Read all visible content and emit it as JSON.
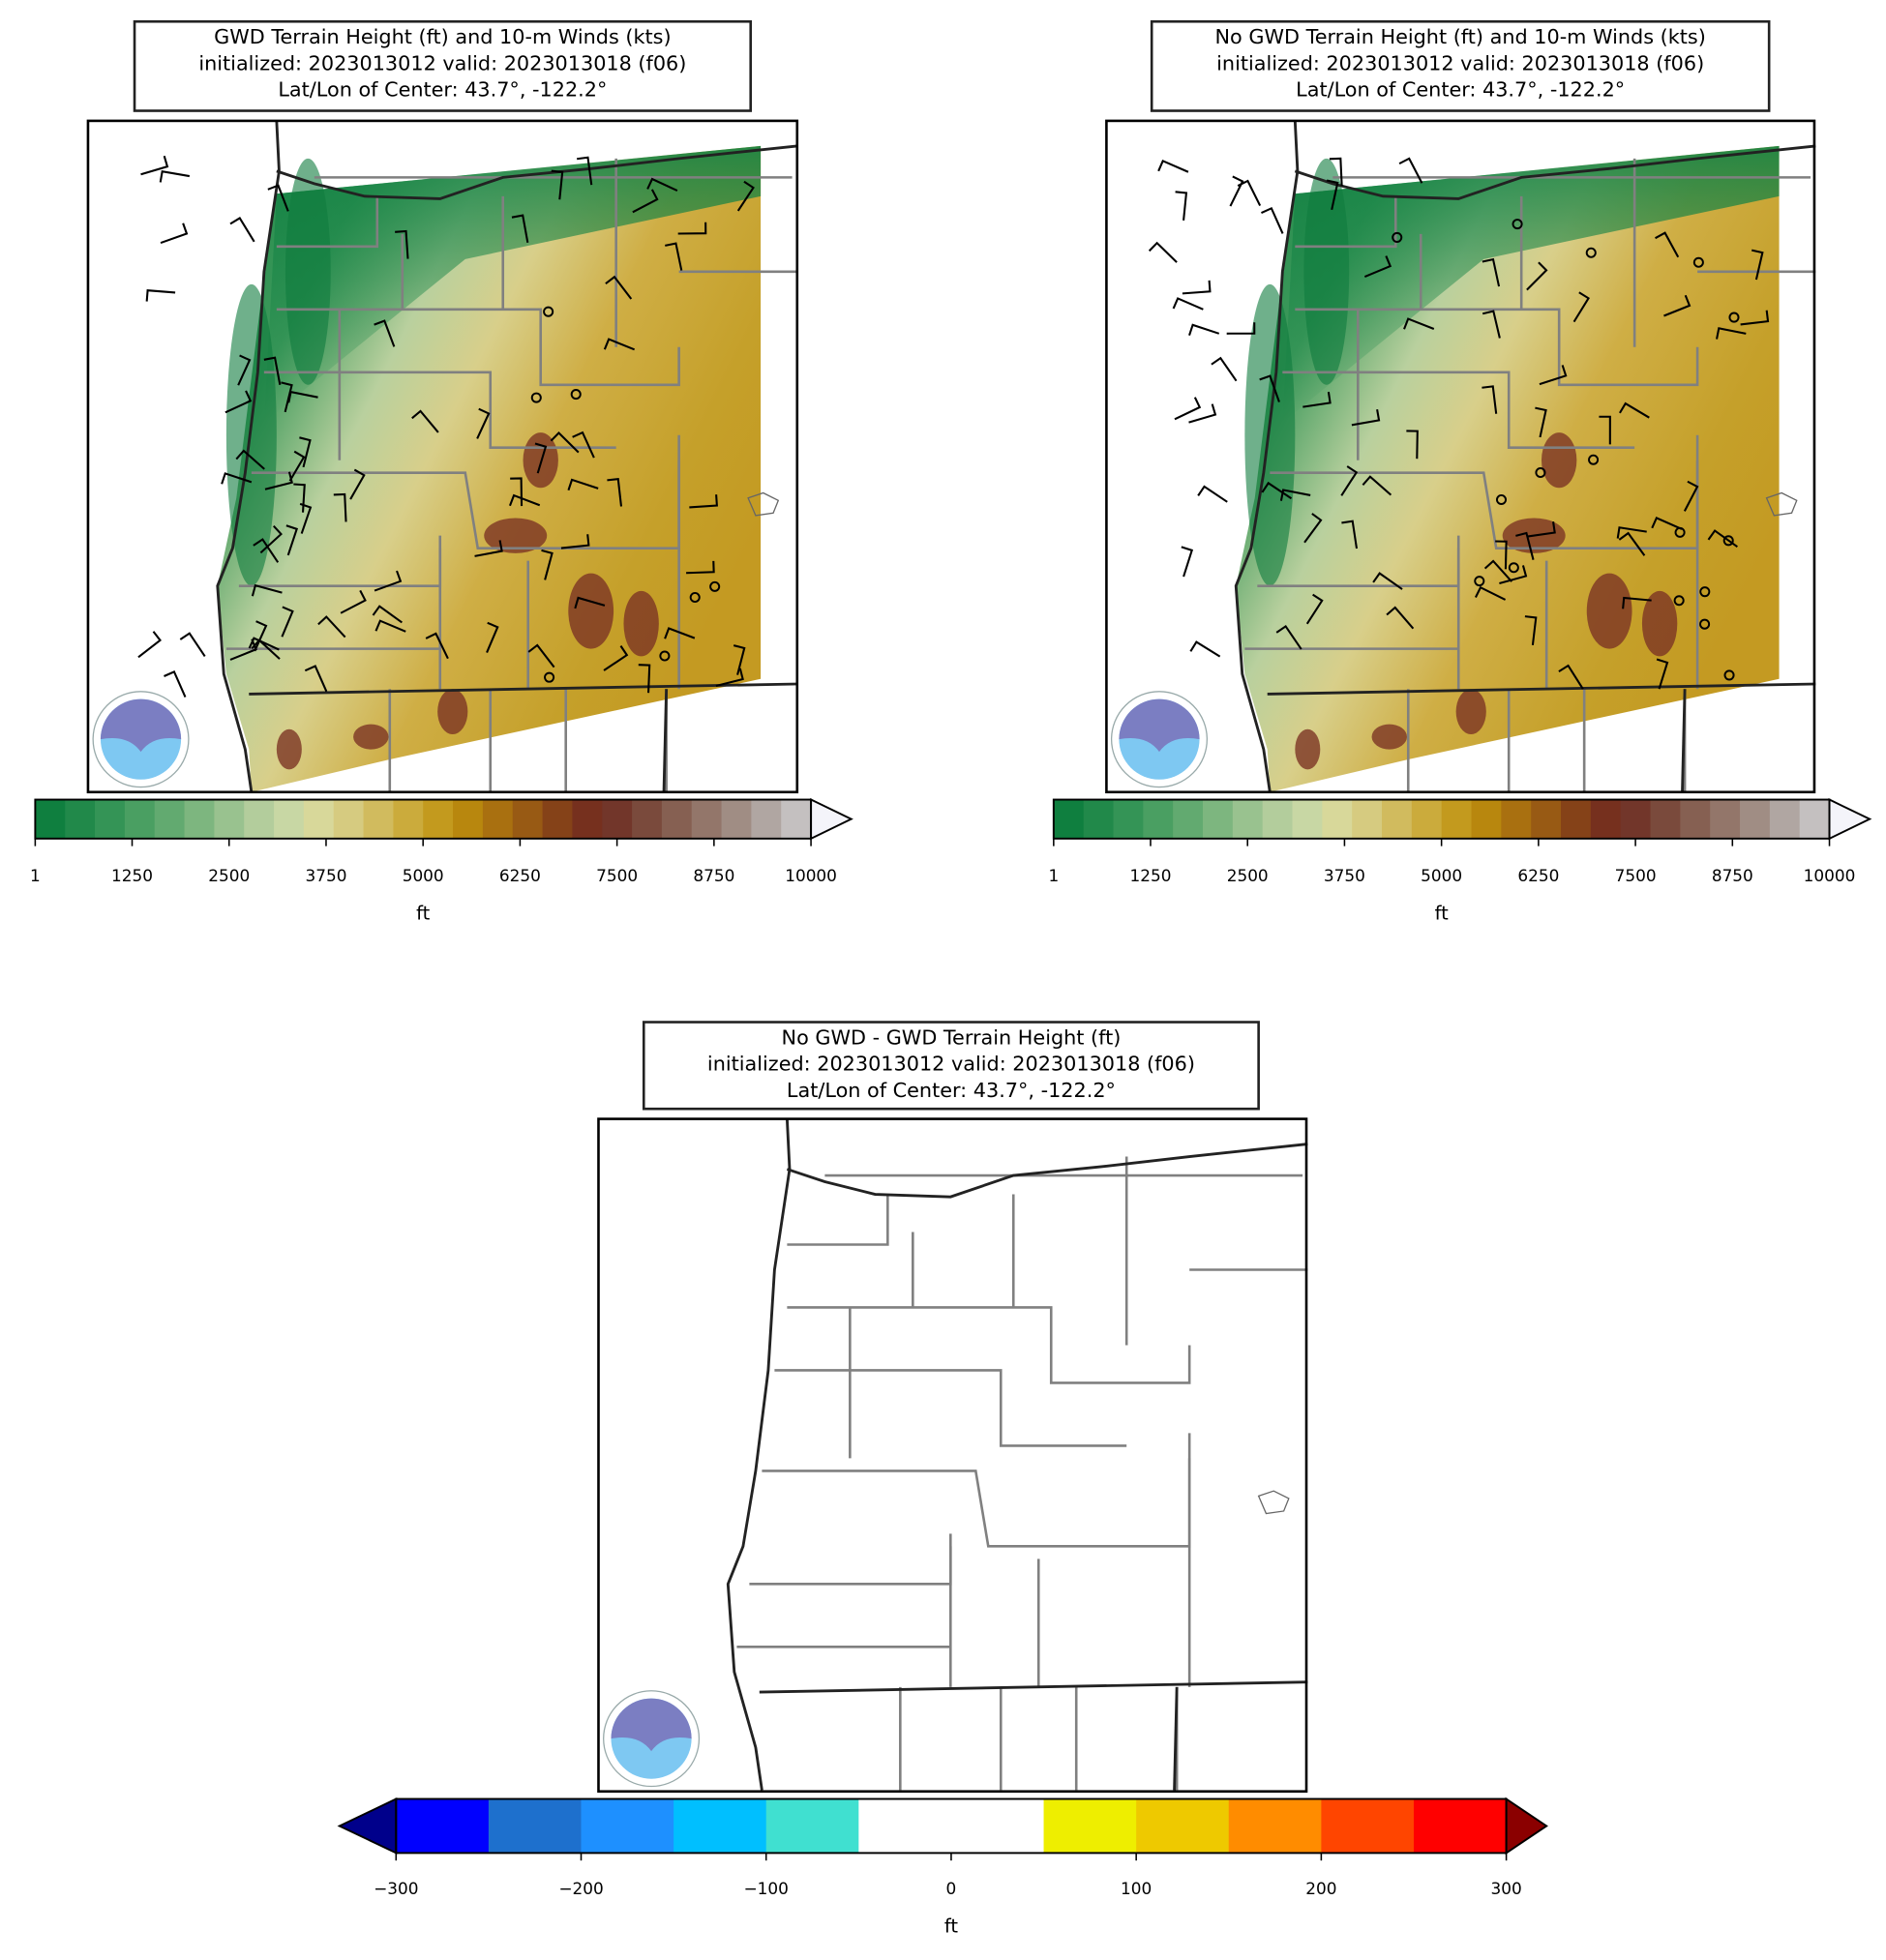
{
  "panels": [
    {
      "title": [
        "GWD Terrain Height (ft) and 10-m Winds (kts)",
        "initialized: 2023013012 valid: 2023013018 (f06)",
        "Lat/Lon of Center: 43.7°, -122.2°"
      ],
      "field": "terrain",
      "winds": true,
      "colorbar": {
        "lim": [
          1,
          10000
        ],
        "ticks": [
          1,
          1250,
          2500,
          3750,
          5000,
          6250,
          7500,
          8750,
          10000
        ],
        "label": "ft",
        "colors": [
          "#0f7f3f",
          "#21894a",
          "#349456",
          "#4a9f62",
          "#62aa70",
          "#7db67f",
          "#99c28f",
          "#b3cd9c",
          "#c8d7a4",
          "#d8d89a",
          "#d6cb80",
          "#d1bb5e",
          "#cbab3c",
          "#c39a1e",
          "#b8870e",
          "#a97010",
          "#985a14",
          "#854218",
          "#76301e",
          "#72362a",
          "#7a4a3c",
          "#866052",
          "#93766a",
          "#a08d84",
          "#b0a6a2",
          "#c4c0c0"
        ],
        "extend_max": "#f4f4fa"
      }
    },
    {
      "title": [
        "No GWD Terrain Height (ft) and 10-m Winds (kts)",
        "initialized: 2023013012 valid: 2023013018 (f06)",
        "Lat/Lon of Center: 43.7°, -122.2°"
      ],
      "field": "terrain",
      "winds": true,
      "colorbar": {
        "lim": [
          1,
          10000
        ],
        "ticks": [
          1,
          1250,
          2500,
          3750,
          5000,
          6250,
          7500,
          8750,
          10000
        ],
        "label": "ft",
        "colors": [
          "#0f7f3f",
          "#21894a",
          "#349456",
          "#4a9f62",
          "#62aa70",
          "#7db67f",
          "#99c28f",
          "#b3cd9c",
          "#c8d7a4",
          "#d8d89a",
          "#d6cb80",
          "#d1bb5e",
          "#cbab3c",
          "#c39a1e",
          "#b8870e",
          "#a97010",
          "#985a14",
          "#854218",
          "#76301e",
          "#72362a",
          "#7a4a3c",
          "#866052",
          "#93766a",
          "#a08d84",
          "#b0a6a2",
          "#c4c0c0"
        ],
        "extend_max": "#f4f4fa"
      }
    },
    {
      "title": [
        "No GWD - GWD Terrain Height (ft)",
        "initialized: 2023013012 valid: 2023013018 (f06)",
        "Lat/Lon of Center: 43.7°, -122.2°"
      ],
      "field": "difference",
      "winds": false,
      "colorbar": {
        "lim": [
          -300,
          300
        ],
        "ticks": [
          {
            "value": -300,
            "label": "−300"
          },
          {
            "value": -200,
            "label": "−200"
          },
          {
            "value": -100,
            "label": "−100"
          },
          0,
          100,
          200,
          300
        ],
        "label": "ft",
        "bounds": [
          -300,
          -250,
          -200,
          -150,
          -100,
          -50,
          50,
          100,
          150,
          200,
          250,
          300
        ],
        "colors": [
          "#0000ff",
          "#1e70cd",
          "#1e90ff",
          "#00bfff",
          "#40e0d0",
          "#ffffff",
          "#eeee00",
          "#eec900",
          "#ff8c00",
          "#ff4500",
          "#ff0000"
        ],
        "extend_min": "#00008b",
        "extend_max": "#8b0000"
      }
    }
  ]
}
